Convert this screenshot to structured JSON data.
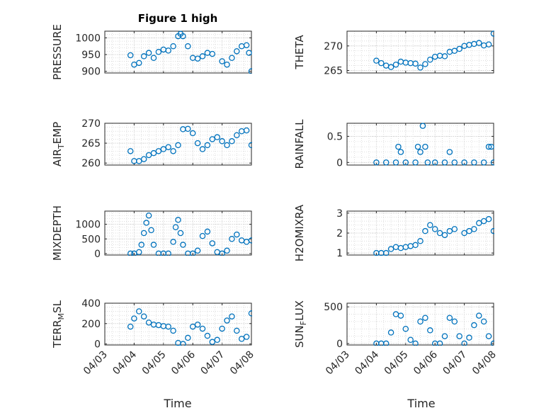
{
  "figure": {
    "title": "Figure 1 high",
    "xlabel": "Time",
    "marker_color": "#0072bd"
  },
  "chart_data": [
    {
      "type": "scatter",
      "ylabel": "PRESSURE",
      "ylim": [
        895,
        1020
      ],
      "yticks": [
        900,
        950,
        1000
      ],
      "grid": "on",
      "xlim": [
        "04/03",
        "04/08"
      ],
      "x": [
        "04/03 21:00",
        "04/04 00:00",
        "04/04 04:00",
        "04/04 08:00",
        "04/04 12:00",
        "04/04 16:00",
        "04/04 20:00",
        "04/05 00:00",
        "04/05 04:00",
        "04/05 08:00",
        "04/05 12:00",
        "04/05 14:00",
        "04/05 16:00",
        "04/05 20:00",
        "04/06 00:00",
        "04/06 04:00",
        "04/06 08:00",
        "04/06 12:00",
        "04/06 16:00",
        "04/07 00:00",
        "04/07 04:00",
        "04/07 08:00",
        "04/07 12:00",
        "04/07 16:00",
        "04/07 20:00",
        "04/07 22:00",
        "04/08 00:00"
      ],
      "y": [
        948,
        920,
        925,
        945,
        955,
        940,
        958,
        965,
        962,
        975,
        1005,
        1012,
        1005,
        975,
        940,
        938,
        945,
        955,
        952,
        930,
        920,
        940,
        960,
        975,
        978,
        955,
        900
      ]
    },
    {
      "type": "scatter",
      "ylabel": "THETA",
      "ylim": [
        264.5,
        273
      ],
      "yticks": [
        265,
        270
      ],
      "grid": "on",
      "xlim": [
        "04/03",
        "04/08"
      ],
      "x": [
        "04/04 00:00",
        "04/04 04:00",
        "04/04 08:00",
        "04/04 12:00",
        "04/04 16:00",
        "04/04 20:00",
        "04/05 00:00",
        "04/05 04:00",
        "04/05 08:00",
        "04/05 12:00",
        "04/05 16:00",
        "04/05 20:00",
        "04/06 00:00",
        "04/06 04:00",
        "04/06 08:00",
        "04/06 12:00",
        "04/06 16:00",
        "04/06 20:00",
        "04/07 00:00",
        "04/07 04:00",
        "04/07 08:00",
        "04/07 12:00",
        "04/07 16:00",
        "04/07 20:00",
        "04/08 00:00"
      ],
      "y": [
        267,
        266.5,
        266,
        265.7,
        266.2,
        266.8,
        266.6,
        266.5,
        266.4,
        265.6,
        266.3,
        267.2,
        267.8,
        268,
        267.9,
        268.8,
        269,
        269.4,
        270,
        270.2,
        270.4,
        270.6,
        270.1,
        270.3,
        272.5
      ]
    },
    {
      "type": "scatter",
      "ylabel": "AIR_TEMP",
      "ylim": [
        259.5,
        270
      ],
      "yticks": [
        260,
        265,
        270
      ],
      "grid": "on",
      "xlim": [
        "04/03",
        "04/08"
      ],
      "x": [
        "04/03 21:00",
        "04/04 00:00",
        "04/04 04:00",
        "04/04 08:00",
        "04/04 12:00",
        "04/04 16:00",
        "04/04 20:00",
        "04/05 00:00",
        "04/05 04:00",
        "04/05 08:00",
        "04/05 12:00",
        "04/05 16:00",
        "04/05 20:00",
        "04/06 00:00",
        "04/06 04:00",
        "04/06 08:00",
        "04/06 12:00",
        "04/06 16:00",
        "04/06 20:00",
        "04/07 00:00",
        "04/07 04:00",
        "04/07 08:00",
        "04/07 12:00",
        "04/07 16:00",
        "04/07 20:00",
        "04/08 00:00"
      ],
      "y": [
        263,
        260.5,
        260.5,
        261,
        262,
        262.5,
        263,
        263.5,
        264,
        263,
        264.5,
        268.5,
        268.6,
        267.5,
        265,
        263.5,
        264.5,
        266,
        266.5,
        265.5,
        264.5,
        265.5,
        267,
        268,
        268.2,
        264.5
      ]
    },
    {
      "type": "scatter",
      "ylabel": "RAINFALL",
      "ylim": [
        -0.05,
        0.75
      ],
      "yticks": [
        0,
        0.5
      ],
      "grid": "on",
      "xlim": [
        "04/03",
        "04/08"
      ],
      "x": [
        "04/04 00:00",
        "04/04 08:00",
        "04/04 16:00",
        "04/04 18:00",
        "04/04 20:00",
        "04/05 00:00",
        "04/05 08:00",
        "04/05 10:00",
        "04/05 12:00",
        "04/05 14:00",
        "04/05 16:00",
        "04/05 18:00",
        "04/06 00:00",
        "04/06 08:00",
        "04/06 12:00",
        "04/06 16:00",
        "04/07 00:00",
        "04/07 08:00",
        "04/07 16:00",
        "04/07 20:00",
        "04/07 22:00",
        "04/08 00:00"
      ],
      "y": [
        0,
        0,
        0,
        0.3,
        0.2,
        0,
        0,
        0.3,
        0.2,
        0.7,
        0.3,
        0,
        0,
        0,
        0.2,
        0,
        0,
        0,
        0,
        0.3,
        0.3,
        0
      ]
    },
    {
      "type": "scatter",
      "ylabel": "MIXDEPTH",
      "ylim": [
        -50,
        1450
      ],
      "yticks": [
        0,
        500,
        1000
      ],
      "grid": "on",
      "xlim": [
        "04/03",
        "04/08"
      ],
      "x": [
        "04/03 21:00",
        "04/04 00:00",
        "04/04 04:00",
        "04/04 06:00",
        "04/04 08:00",
        "04/04 10:00",
        "04/04 12:00",
        "04/04 14:00",
        "04/04 16:00",
        "04/04 20:00",
        "04/05 00:00",
        "04/05 04:00",
        "04/05 08:00",
        "04/05 10:00",
        "04/05 12:00",
        "04/05 14:00",
        "04/05 16:00",
        "04/05 20:00",
        "04/06 00:00",
        "04/06 04:00",
        "04/06 08:00",
        "04/06 12:00",
        "04/06 16:00",
        "04/06 20:00",
        "04/07 00:00",
        "04/07 04:00",
        "04/07 08:00",
        "04/07 12:00",
        "04/07 16:00",
        "04/07 20:00",
        "04/08 00:00"
      ],
      "y": [
        0,
        0,
        50,
        300,
        700,
        1050,
        1300,
        800,
        300,
        0,
        0,
        0,
        400,
        900,
        1150,
        700,
        300,
        0,
        0,
        100,
        600,
        750,
        350,
        50,
        0,
        100,
        500,
        650,
        450,
        400,
        450
      ]
    },
    {
      "type": "scatter",
      "ylabel": "H2OMIXRA",
      "ylim": [
        0.9,
        3.1
      ],
      "yticks": [
        1,
        2,
        3
      ],
      "grid": "on",
      "xlim": [
        "04/03",
        "04/08"
      ],
      "x": [
        "04/04 00:00",
        "04/04 04:00",
        "04/04 08:00",
        "04/04 12:00",
        "04/04 16:00",
        "04/04 20:00",
        "04/05 00:00",
        "04/05 04:00",
        "04/05 08:00",
        "04/05 12:00",
        "04/05 16:00",
        "04/05 20:00",
        "04/06 00:00",
        "04/06 04:00",
        "04/06 08:00",
        "04/06 12:00",
        "04/06 16:00",
        "04/07 00:00",
        "04/07 04:00",
        "04/07 08:00",
        "04/07 12:00",
        "04/07 16:00",
        "04/07 20:00",
        "04/08 00:00"
      ],
      "y": [
        1,
        1,
        1,
        1.2,
        1.3,
        1.25,
        1.3,
        1.35,
        1.4,
        1.6,
        2.1,
        2.4,
        2.2,
        2,
        1.9,
        2.1,
        2.2,
        2,
        2.1,
        2.2,
        2.5,
        2.6,
        2.7,
        2.1
      ]
    },
    {
      "type": "scatter",
      "ylabel": "TERR_MSL",
      "ylim": [
        -10,
        400
      ],
      "yticks": [
        0,
        200,
        400
      ],
      "grid": "on",
      "xlim": [
        "04/03",
        "04/08"
      ],
      "x": [
        "04/03 21:00",
        "04/04 00:00",
        "04/04 04:00",
        "04/04 08:00",
        "04/04 12:00",
        "04/04 16:00",
        "04/04 20:00",
        "04/05 00:00",
        "04/05 04:00",
        "04/05 08:00",
        "04/05 12:00",
        "04/05 16:00",
        "04/05 20:00",
        "04/06 00:00",
        "04/06 04:00",
        "04/06 08:00",
        "04/06 12:00",
        "04/06 16:00",
        "04/06 20:00",
        "04/07 00:00",
        "04/07 04:00",
        "04/07 08:00",
        "04/07 12:00",
        "04/07 16:00",
        "04/07 20:00",
        "04/08 00:00"
      ],
      "y": [
        170,
        250,
        320,
        270,
        210,
        190,
        185,
        175,
        170,
        130,
        10,
        0,
        60,
        170,
        190,
        150,
        80,
        20,
        40,
        150,
        230,
        270,
        130,
        50,
        70,
        300
      ]
    },
    {
      "type": "scatter",
      "ylabel": "SUN_FLUX",
      "ylim": [
        -20,
        550
      ],
      "yticks": [
        0,
        500
      ],
      "grid": "on",
      "xlim": [
        "04/03",
        "04/08"
      ],
      "x": [
        "04/04 00:00",
        "04/04 04:00",
        "04/04 08:00",
        "04/04 12:00",
        "04/04 16:00",
        "04/04 20:00",
        "04/05 00:00",
        "04/05 04:00",
        "04/05 08:00",
        "04/05 12:00",
        "04/05 16:00",
        "04/05 20:00",
        "04/06 00:00",
        "04/06 04:00",
        "04/06 08:00",
        "04/06 12:00",
        "04/06 16:00",
        "04/06 20:00",
        "04/07 00:00",
        "04/07 04:00",
        "04/07 08:00",
        "04/07 12:00",
        "04/07 16:00",
        "04/07 20:00",
        "04/08 00:00"
      ],
      "y": [
        0,
        0,
        0,
        150,
        400,
        380,
        200,
        50,
        0,
        300,
        350,
        180,
        0,
        0,
        100,
        350,
        300,
        100,
        0,
        80,
        250,
        380,
        300,
        100,
        0
      ]
    }
  ]
}
